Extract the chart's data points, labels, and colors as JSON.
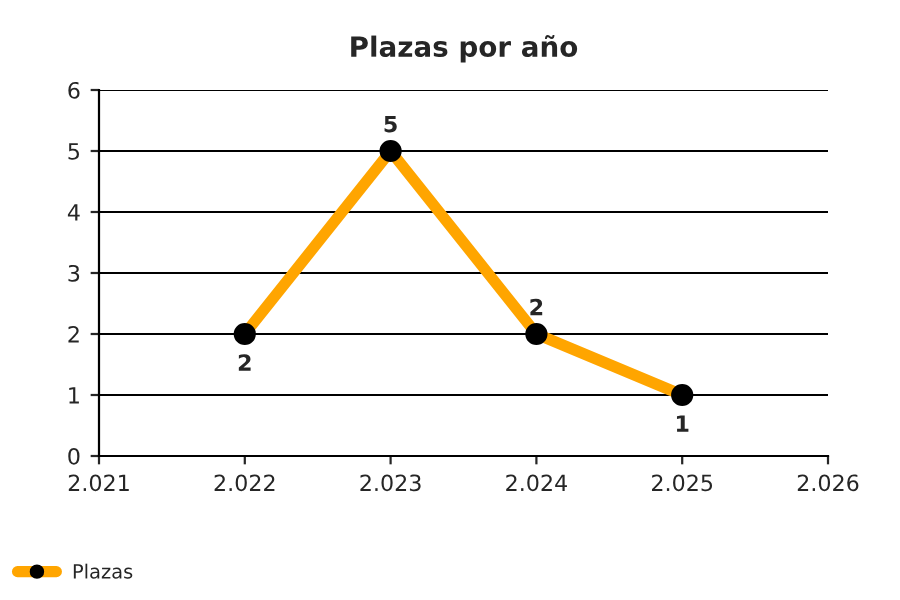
{
  "chart_data": {
    "type": "line",
    "title": "Plazas por año",
    "x": [
      2022,
      2023,
      2024,
      2025
    ],
    "series": [
      {
        "name": "Plazas",
        "color": "#ffa500",
        "values": [
          2,
          5,
          2,
          1
        ]
      }
    ],
    "xlim": [
      2021,
      2026
    ],
    "xticks": [
      {
        "value": 2021,
        "label": "2.021"
      },
      {
        "value": 2022,
        "label": "2.022"
      },
      {
        "value": 2023,
        "label": "2.023"
      },
      {
        "value": 2024,
        "label": "2.024"
      },
      {
        "value": 2025,
        "label": "2.025"
      },
      {
        "value": 2026,
        "label": "2.026"
      }
    ],
    "ylim": [
      0,
      6
    ],
    "yticks": [
      0,
      1,
      2,
      3,
      4,
      5,
      6
    ],
    "grid": "y",
    "legend": "bottom left",
    "marker": "circle",
    "line_style": "solid",
    "data_labels": true
  }
}
